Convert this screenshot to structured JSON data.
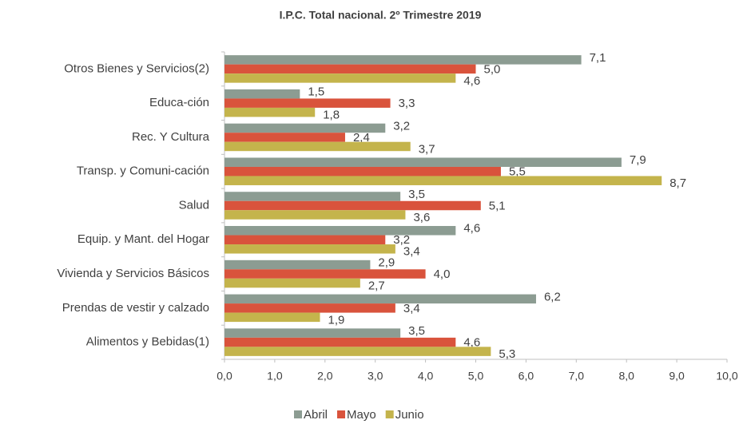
{
  "chart_data": {
    "type": "hbar",
    "title": "I.P.C.  Total nacional. 2º Trimestre 2019",
    "categories": [
      "Otros Bienes y Servicios(2)",
      "Educa-ción",
      "Rec. Y Cultura",
      "Transp. y Comuni-cación",
      "Salud",
      "Equip. y Mant. del Hogar",
      "Vivienda y Servicios Básicos",
      "Prendas de vestir y calzado",
      "Alimentos y Bebidas(1)"
    ],
    "series": [
      {
        "name": "Abril",
        "color": "#8c9c92",
        "values": [
          7.1,
          1.5,
          3.2,
          7.9,
          3.5,
          4.6,
          2.9,
          6.2,
          3.5
        ],
        "value_labels": [
          "7,1",
          "1,5",
          "3,2",
          "7,9",
          "3,5",
          "4,6",
          "2,9",
          "6,2",
          "3,5"
        ]
      },
      {
        "name": "Mayo",
        "color": "#d9533c",
        "values": [
          5.0,
          3.3,
          2.4,
          5.5,
          5.1,
          3.2,
          4.0,
          3.4,
          4.6
        ],
        "value_labels": [
          "5,0",
          "3,3",
          "2,4",
          "5,5",
          "5,1",
          "3,2",
          "4,0",
          "3,4",
          "4,6"
        ]
      },
      {
        "name": "Junio",
        "color": "#c4b44c",
        "values": [
          4.6,
          1.8,
          3.7,
          8.7,
          3.6,
          3.4,
          2.7,
          1.9,
          5.3
        ],
        "value_labels": [
          "4,6",
          "1,8",
          "3,7",
          "8,7",
          "3,6",
          "3,4",
          "2,7",
          "1,9",
          "5,3"
        ]
      }
    ],
    "xlim": [
      0,
      10
    ],
    "xticks": [
      {
        "value": 0,
        "label": "0,0"
      },
      {
        "value": 1,
        "label": "1,0"
      },
      {
        "value": 2,
        "label": "2,0"
      },
      {
        "value": 3,
        "label": "3,0"
      },
      {
        "value": 4,
        "label": "4,0"
      },
      {
        "value": 5,
        "label": "5,0"
      },
      {
        "value": 6,
        "label": "6,0"
      },
      {
        "value": 7,
        "label": "7,0"
      },
      {
        "value": 8,
        "label": "8,0"
      },
      {
        "value": 9,
        "label": "9,0"
      },
      {
        "value": 10,
        "label": "10,0"
      }
    ],
    "legend": "bottom"
  }
}
